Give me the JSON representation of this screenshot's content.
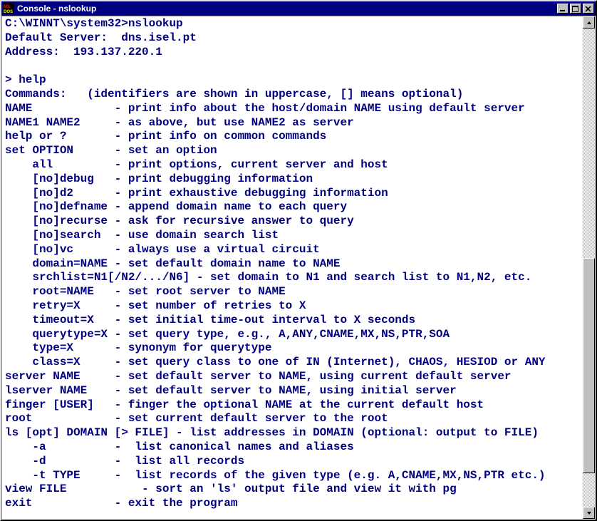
{
  "window": {
    "title": "Console - nslookup"
  },
  "colors": {
    "titlebar_bg": "#000080",
    "titlebar_fg": "#ffffff",
    "console_bg": "#ffffff",
    "console_fg": "#000080",
    "chrome": "#c0c0c0"
  },
  "scrollbar": {
    "thumb_top_pct": 48,
    "thumb_height_pct": 45
  },
  "console": {
    "lines": [
      "C:\\WINNT\\system32>nslookup",
      "Default Server:  dns.isel.pt",
      "Address:  193.137.220.1",
      "",
      "> help",
      "Commands:   (identifiers are shown in uppercase, [] means optional)",
      "NAME            - print info about the host/domain NAME using default server",
      "NAME1 NAME2     - as above, but use NAME2 as server",
      "help or ?       - print info on common commands",
      "set OPTION      - set an option",
      "    all         - print options, current server and host",
      "    [no]debug   - print debugging information",
      "    [no]d2      - print exhaustive debugging information",
      "    [no]defname - append domain name to each query",
      "    [no]recurse - ask for recursive answer to query",
      "    [no]search  - use domain search list",
      "    [no]vc      - always use a virtual circuit",
      "    domain=NAME - set default domain name to NAME",
      "    srchlist=N1[/N2/.../N6] - set domain to N1 and search list to N1,N2, etc.",
      "    root=NAME   - set root server to NAME",
      "    retry=X     - set number of retries to X",
      "    timeout=X   - set initial time-out interval to X seconds",
      "    querytype=X - set query type, e.g., A,ANY,CNAME,MX,NS,PTR,SOA",
      "    type=X      - synonym for querytype",
      "    class=X     - set query class to one of IN (Internet), CHAOS, HESIOD or ANY",
      "server NAME     - set default server to NAME, using current default server",
      "lserver NAME    - set default server to NAME, using initial server",
      "finger [USER]   - finger the optional NAME at the current default host",
      "root            - set current default server to the root",
      "ls [opt] DOMAIN [> FILE] - list addresses in DOMAIN (optional: output to FILE)",
      "    -a          -  list canonical names and aliases",
      "    -d          -  list all records",
      "    -t TYPE     -  list records of the given type (e.g. A,CNAME,MX,NS,PTR etc.)",
      "view FILE           - sort an 'ls' output file and view it with pg",
      "exit            - exit the program"
    ]
  }
}
